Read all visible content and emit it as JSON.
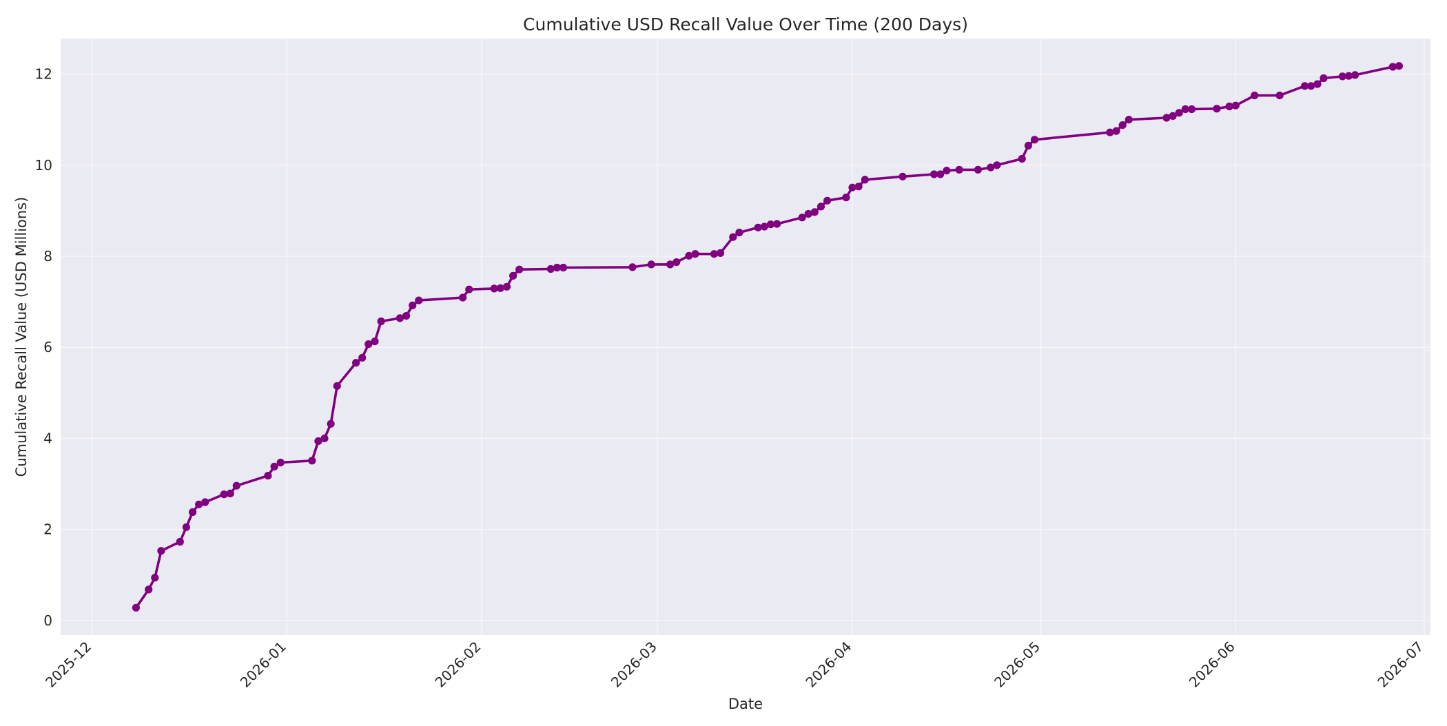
{
  "chart_data": {
    "type": "line",
    "title": "Cumulative USD Recall Value Over Time (200 Days)",
    "xlabel": "Date",
    "ylabel": "Cumulative Recall Value (USD Millions)",
    "x_ticks": [
      "2025-12",
      "2026-01",
      "2026-02",
      "2026-03",
      "2026-04",
      "2026-05",
      "2026-06",
      "2026-07"
    ],
    "y_ticks": [
      "0",
      "2",
      "4",
      "6",
      "8",
      "10",
      "12"
    ],
    "xlim": [
      "2025-11-26",
      "2026-07-02"
    ],
    "ylim": [
      -0.32,
      12.78
    ],
    "grid": true,
    "series": [
      {
        "color": "#800080",
        "marker": "circle",
        "points": [
          [
            "2025-12-08",
            0.28
          ],
          [
            "2025-12-10",
            0.68
          ],
          [
            "2025-12-11",
            0.94
          ],
          [
            "2025-12-12",
            1.53
          ],
          [
            "2025-12-15",
            1.73
          ],
          [
            "2025-12-16",
            2.05
          ],
          [
            "2025-12-17",
            2.38
          ],
          [
            "2025-12-18",
            2.55
          ],
          [
            "2025-12-19",
            2.6
          ],
          [
            "2025-12-22",
            2.77
          ],
          [
            "2025-12-23",
            2.79
          ],
          [
            "2025-12-24",
            2.96
          ],
          [
            "2025-12-29",
            3.18
          ],
          [
            "2025-12-30",
            3.38
          ],
          [
            "2025-12-31",
            3.47
          ],
          [
            "2026-01-05",
            3.51
          ],
          [
            "2026-01-06",
            3.94
          ],
          [
            "2026-01-07",
            4.0
          ],
          [
            "2026-01-08",
            4.32
          ],
          [
            "2026-01-09",
            5.15
          ],
          [
            "2026-01-12",
            5.66
          ],
          [
            "2026-01-13",
            5.77
          ],
          [
            "2026-01-14",
            6.07
          ],
          [
            "2026-01-15",
            6.13
          ],
          [
            "2026-01-16",
            6.57
          ],
          [
            "2026-01-19",
            6.64
          ],
          [
            "2026-01-20",
            6.69
          ],
          [
            "2026-01-21",
            6.92
          ],
          [
            "2026-01-22",
            7.03
          ],
          [
            "2026-01-29",
            7.09
          ],
          [
            "2026-01-30",
            7.27
          ],
          [
            "2026-02-03",
            7.29
          ],
          [
            "2026-02-04",
            7.3
          ],
          [
            "2026-02-05",
            7.33
          ],
          [
            "2026-02-06",
            7.57
          ],
          [
            "2026-02-07",
            7.71
          ],
          [
            "2026-02-12",
            7.72
          ],
          [
            "2026-02-13",
            7.75
          ],
          [
            "2026-02-14",
            7.75
          ],
          [
            "2026-02-25",
            7.76
          ],
          [
            "2026-02-28",
            7.82
          ],
          [
            "2026-03-03",
            7.82
          ],
          [
            "2026-03-04",
            7.87
          ],
          [
            "2026-03-06",
            8.01
          ],
          [
            "2026-03-07",
            8.05
          ],
          [
            "2026-03-10",
            8.05
          ],
          [
            "2026-03-11",
            8.07
          ],
          [
            "2026-03-13",
            8.42
          ],
          [
            "2026-03-14",
            8.52
          ],
          [
            "2026-03-17",
            8.63
          ],
          [
            "2026-03-18",
            8.65
          ],
          [
            "2026-03-19",
            8.7
          ],
          [
            "2026-03-20",
            8.71
          ],
          [
            "2026-03-24",
            8.85
          ],
          [
            "2026-03-25",
            8.93
          ],
          [
            "2026-03-26",
            8.97
          ],
          [
            "2026-03-27",
            9.09
          ],
          [
            "2026-03-28",
            9.22
          ],
          [
            "2026-03-31",
            9.29
          ],
          [
            "2026-04-01",
            9.51
          ],
          [
            "2026-04-02",
            9.53
          ],
          [
            "2026-04-03",
            9.68
          ],
          [
            "2026-04-09",
            9.75
          ],
          [
            "2026-04-14",
            9.8
          ],
          [
            "2026-04-15",
            9.8
          ],
          [
            "2026-04-16",
            9.88
          ],
          [
            "2026-04-18",
            9.9
          ],
          [
            "2026-04-21",
            9.9
          ],
          [
            "2026-04-23",
            9.95
          ],
          [
            "2026-04-24",
            10.0
          ],
          [
            "2026-04-28",
            10.14
          ],
          [
            "2026-04-29",
            10.43
          ],
          [
            "2026-04-30",
            10.56
          ],
          [
            "2026-05-12",
            10.72
          ],
          [
            "2026-05-13",
            10.75
          ],
          [
            "2026-05-14",
            10.88
          ],
          [
            "2026-05-15",
            11.0
          ],
          [
            "2026-05-21",
            11.04
          ],
          [
            "2026-05-22",
            11.08
          ],
          [
            "2026-05-23",
            11.15
          ],
          [
            "2026-05-24",
            11.23
          ],
          [
            "2026-05-25",
            11.23
          ],
          [
            "2026-05-29",
            11.24
          ],
          [
            "2026-05-31",
            11.29
          ],
          [
            "2026-06-01",
            11.31
          ],
          [
            "2026-06-04",
            11.53
          ],
          [
            "2026-06-08",
            11.53
          ],
          [
            "2026-06-12",
            11.74
          ],
          [
            "2026-06-13",
            11.74
          ],
          [
            "2026-06-14",
            11.78
          ],
          [
            "2026-06-15",
            11.91
          ],
          [
            "2026-06-18",
            11.95
          ],
          [
            "2026-06-19",
            11.96
          ],
          [
            "2026-06-20",
            11.98
          ],
          [
            "2026-06-26",
            12.16
          ],
          [
            "2026-06-27",
            12.18
          ]
        ]
      }
    ]
  }
}
